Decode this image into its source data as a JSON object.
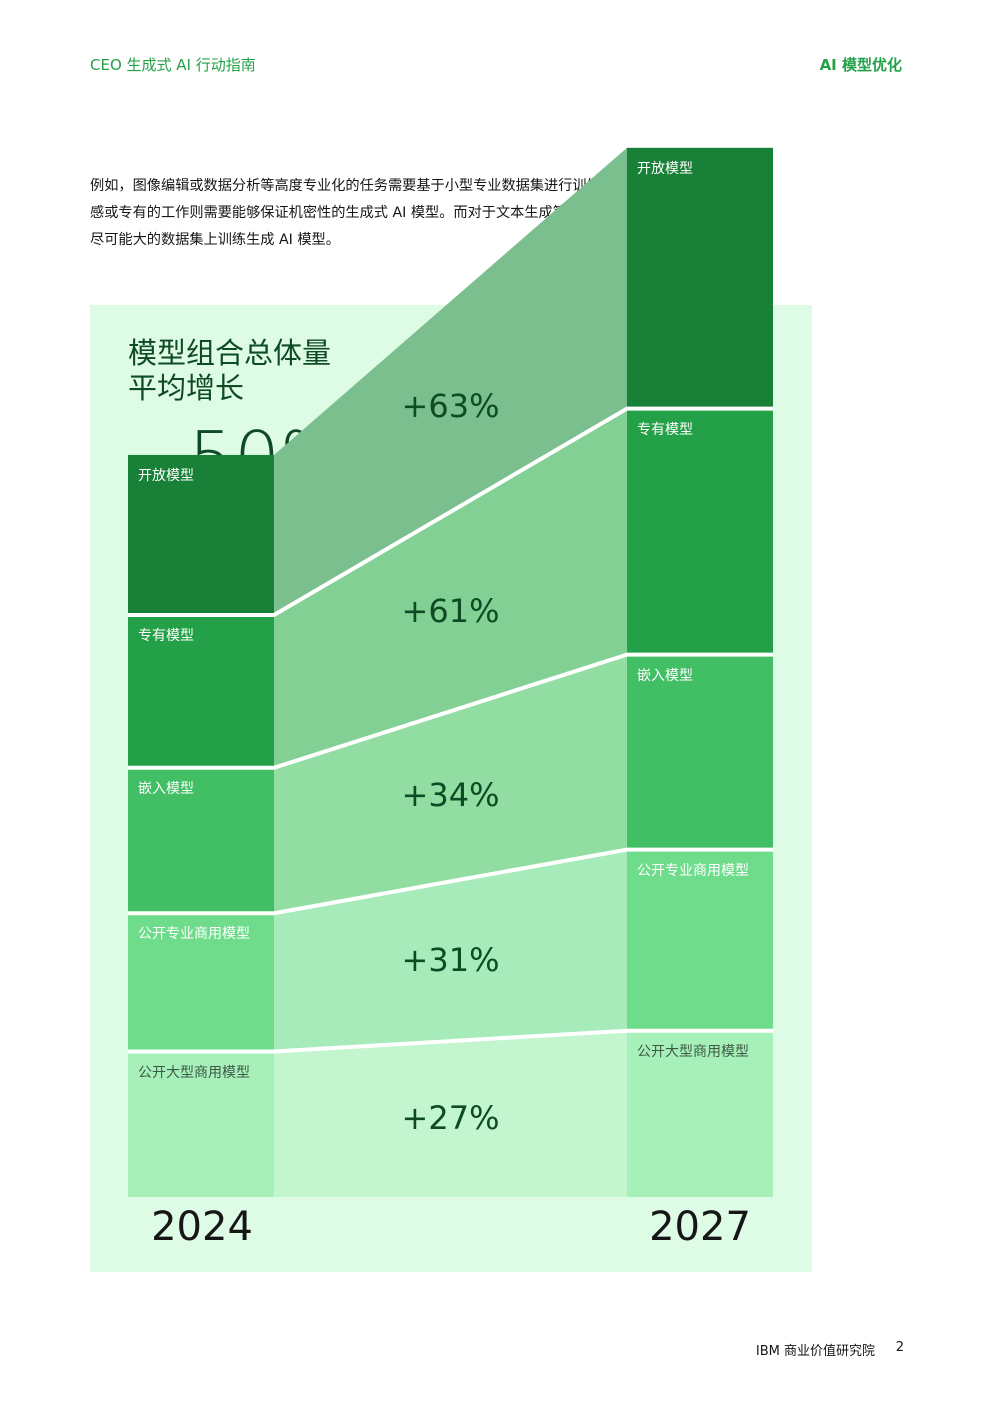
{
  "header": {
    "left": "CEO 生成式 AI 行动指南",
    "right": "AI 模型优化"
  },
  "intro": "例如，图像编辑或数据分析等高度专业化的任务需要基于小型专业数据集进行训练的生成式 AI 模型。敏感或专有的工作则需要能够保证机密性的生成式 AI 模型。而对于文本生成等常规性任务，就可能需要在尽可能大的数据集上训练生成 AI 模型。",
  "chart_data": {
    "type": "area",
    "title_line1": "模型组合总体量",
    "title_line2": "平均增长",
    "headline": "~50%",
    "categories": [
      "2024",
      "2027"
    ],
    "series": [
      {
        "name": "公开大型商用模型",
        "growth": "+27%",
        "values": [
          100,
          127
        ],
        "color": "#a7f0ba",
        "band": "#c3f5cf"
      },
      {
        "name": "公开专业商用模型",
        "growth": "+31%",
        "values": [
          100,
          131
        ],
        "color": "#6fdc8c",
        "band": "#a7ebba"
      },
      {
        "name": "嵌入模型",
        "growth": "+34%",
        "values": [
          100,
          134
        ],
        "color": "#42be65",
        "band": "#92dea2"
      },
      {
        "name": "专有模型",
        "growth": "+61%",
        "values": [
          100,
          161
        ],
        "color": "#24a148",
        "band": "#82d094"
      },
      {
        "name": "开放模型",
        "growth": "+63%",
        "values": [
          100,
          163
        ],
        "color": "#198038",
        "band": "#7cbf8e"
      }
    ]
  },
  "footer": {
    "org": "IBM 商业价值研究院",
    "page": "2"
  }
}
